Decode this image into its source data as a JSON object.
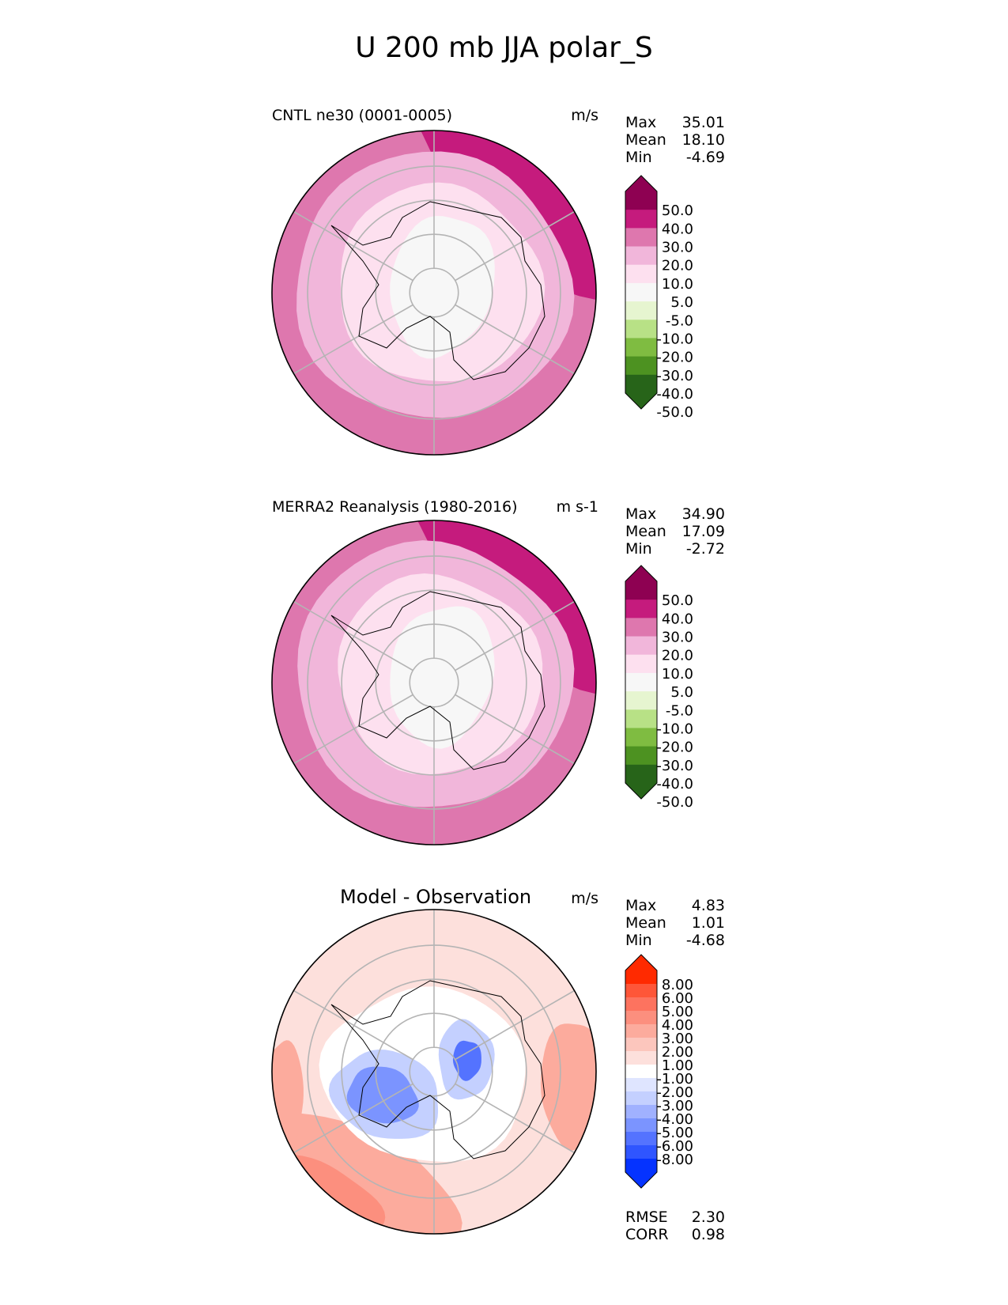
{
  "figure": {
    "title": "U 200 mb JJA polar_S"
  },
  "colors": {
    "test_levels_fill": [
      "#276419",
      "#4d9221",
      "#7fbc41",
      "#b8e186",
      "#e6f5d0",
      "#f7f7f7",
      "#fde0ef",
      "#f1b6da",
      "#de77ae",
      "#c51b7d",
      "#8e0152"
    ],
    "test_ext": [
      "#276419",
      "#8e0152"
    ],
    "diff_fill": [
      "#0533ff",
      "#2f55ff",
      "#5473ff",
      "#7b94ff",
      "#a0b1ff",
      "#c4d0ff",
      "#dfe5ff",
      "#ffffff",
      "#fde0dc",
      "#fcc6bd",
      "#fcab9d",
      "#fc8f7e",
      "#fd735f",
      "#fe5638",
      "#ff2a00"
    ],
    "diff_ext": [
      "#0533ff",
      "#ff2a00"
    ]
  },
  "panels": [
    {
      "id": "test",
      "title": "CNTL ne30 (0001-0005)",
      "units": "m/s",
      "stats": [
        {
          "label": "Max",
          "value": "35.01"
        },
        {
          "label": "Mean",
          "value": "18.10"
        },
        {
          "label": "Min",
          "value": "-4.69"
        }
      ],
      "colorbar_ticks": [
        "50.0",
        "40.0",
        "30.0",
        "20.0",
        "10.0",
        "5.0",
        "-5.0",
        "-10.0",
        "-20.0",
        "-30.0",
        "-40.0",
        "-50.0"
      ]
    },
    {
      "id": "ref",
      "title": "MERRA2 Reanalysis (1980-2016)",
      "units": "m s-1",
      "stats": [
        {
          "label": "Max",
          "value": "34.90"
        },
        {
          "label": "Mean",
          "value": "17.09"
        },
        {
          "label": "Min",
          "value": "-2.72"
        }
      ],
      "colorbar_ticks": [
        "50.0",
        "40.0",
        "30.0",
        "20.0",
        "10.0",
        "5.0",
        "-5.0",
        "-10.0",
        "-20.0",
        "-30.0",
        "-40.0",
        "-50.0"
      ]
    },
    {
      "id": "diff",
      "title": "Model - Observation",
      "units": "m/s",
      "stats": [
        {
          "label": "Max",
          "value": "4.83"
        },
        {
          "label": "Mean",
          "value": "1.01"
        },
        {
          "label": "Min",
          "value": "-4.68"
        }
      ],
      "colorbar_ticks": [
        "8.00",
        "6.00",
        "5.00",
        "4.00",
        "3.00",
        "2.00",
        "1.00",
        "-1.00",
        "-2.00",
        "-3.00",
        "-4.00",
        "-5.00",
        "-6.00",
        "-8.00"
      ],
      "metrics": [
        {
          "label": "RMSE",
          "value": "2.30"
        },
        {
          "label": "CORR",
          "value": "0.98"
        }
      ]
    }
  ],
  "chart_data": [
    {
      "type": "heatmap",
      "title": "CNTL ne30 (0001-0005)",
      "projection": "south polar stereographic",
      "variable": "U 200 mb JJA",
      "units": "m/s",
      "levels": [
        -50,
        -40,
        -30,
        -20,
        -10,
        -5,
        5,
        10,
        20,
        30,
        40,
        50
      ],
      "stats": {
        "max": 35.01,
        "mean": 18.1,
        "min": -4.69
      }
    },
    {
      "type": "heatmap",
      "title": "MERRA2 Reanalysis (1980-2016)",
      "projection": "south polar stereographic",
      "variable": "U 200 mb JJA",
      "units": "m s-1",
      "levels": [
        -50,
        -40,
        -30,
        -20,
        -10,
        -5,
        5,
        10,
        20,
        30,
        40,
        50
      ],
      "stats": {
        "max": 34.9,
        "mean": 17.09,
        "min": -2.72
      }
    },
    {
      "type": "heatmap",
      "title": "Model - Observation",
      "projection": "south polar stereographic",
      "variable": "U 200 mb JJA",
      "units": "m/s",
      "levels": [
        -8,
        -6,
        -5,
        -4,
        -3,
        -2,
        -1,
        1,
        2,
        3,
        4,
        5,
        6,
        8
      ],
      "stats": {
        "max": 4.83,
        "mean": 1.01,
        "min": -4.68,
        "rmse": 2.3,
        "corr": 0.98
      }
    }
  ]
}
